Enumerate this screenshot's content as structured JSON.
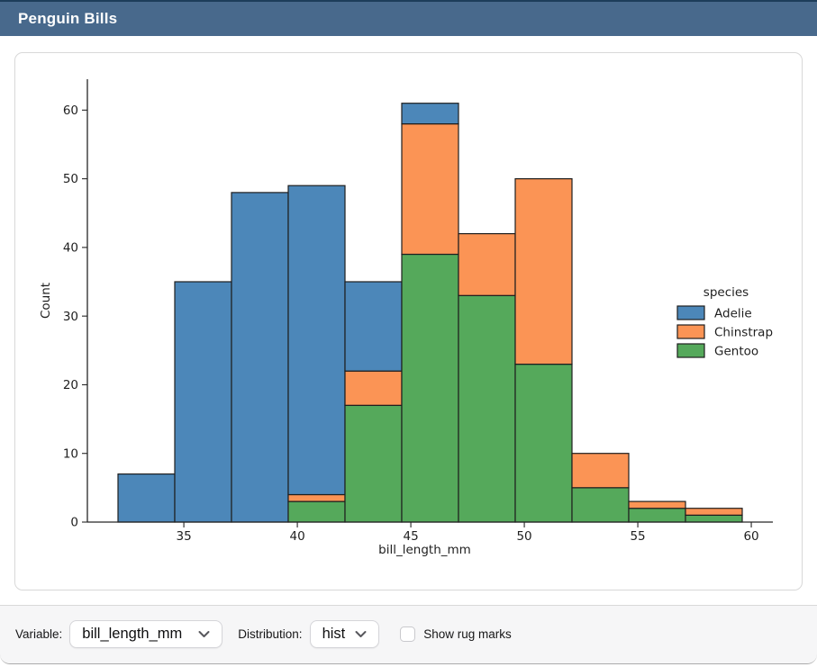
{
  "window": {
    "title": "Penguin Bills"
  },
  "theme": {
    "titlebar_bg": "#48698c",
    "titlebar_top_strip": "#1d3d5a",
    "panel_bg": "#f6f6f7",
    "card_border": "#d8d8d8",
    "bar_edge": "#1e1e1e",
    "axis_color": "#262626"
  },
  "chart_data": {
    "type": "bar",
    "subtype": "stacked-histogram",
    "title": "",
    "xlabel": "bill_length_mm",
    "ylabel": "Count",
    "bin_edges": [
      32.1,
      34.6,
      37.1,
      39.6,
      42.1,
      44.6,
      47.1,
      49.6,
      52.1,
      54.6,
      57.1,
      59.6
    ],
    "series": [
      {
        "name": "Adelie",
        "color": "#4c87b9",
        "values": [
          7,
          35,
          48,
          45,
          13,
          3,
          0,
          0,
          0,
          0,
          0
        ]
      },
      {
        "name": "Chinstrap",
        "color": "#fb9455",
        "values": [
          0,
          0,
          0,
          1,
          5,
          19,
          9,
          27,
          5,
          1,
          1
        ]
      },
      {
        "name": "Gentoo",
        "color": "#55a95b",
        "values": [
          0,
          0,
          0,
          3,
          17,
          39,
          33,
          23,
          5,
          2,
          1
        ]
      }
    ],
    "stack_order_bottom_to_top": [
      "Gentoo",
      "Chinstrap",
      "Adelie"
    ],
    "bin_totals": [
      7,
      35,
      48,
      49,
      35,
      61,
      42,
      50,
      10,
      3,
      2
    ],
    "legend": {
      "title": "species",
      "position": "right"
    },
    "xlim": [
      30.75,
      60.95
    ],
    "ylim": [
      0,
      64.5
    ],
    "xticks": [
      35,
      40,
      45,
      50,
      55,
      60
    ],
    "yticks": [
      0,
      10,
      20,
      30,
      40,
      50,
      60
    ],
    "grid": false
  },
  "controls": {
    "variable_label": "Variable:",
    "variable_value": "bill_length_mm",
    "distribution_label": "Distribution:",
    "distribution_value": "hist",
    "rug_label": "Show rug marks",
    "rug_checked": false
  }
}
